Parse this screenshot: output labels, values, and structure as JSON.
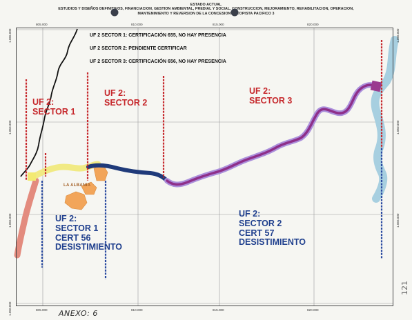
{
  "header": {
    "line1": "ESTADO ACTUAL",
    "line2": "ESTUDIOS Y DISEÑOS DEFINITIVOS, FINANCIACION, GESTION AMBIENTAL, PREDIAL Y SOCIAL, CONSTRUCCION, MEJORAMIENTO, REHABILITACION, OPERACION,",
    "line3": "MANTENIMIENTO Y REVERSION DE LA CONCESION AUTOPISTA PACIFICO 3"
  },
  "grid": {
    "easting_labels": [
      "805.000",
      "810.000",
      "815.000",
      "820.000"
    ],
    "northing_labels": [
      "1.065.000",
      "1.060.000",
      "1.055.000",
      "1.050.000"
    ]
  },
  "status_lines": [
    "UF 2 SECTOR 1: CERTIFICACIÓN 655, NO HAY PRESENCIA",
    "UF 2 SECTOR 2: PENDIENTE CERTIFICAR",
    "UF 2 SECTOR 3: CERTIFICACIÓN 656, NO HAY PRESENCIA"
  ],
  "sectors_top": {
    "s1": {
      "line1": "UF 2:",
      "line2": "SECTOR 1"
    },
    "s2": {
      "line1": "UF 2:",
      "line2": "SECTOR 2"
    },
    "s3": {
      "line1": "UF 2:",
      "line2": "SECTOR 3"
    }
  },
  "sectors_bottom": {
    "s1": {
      "line1": "UF 2:",
      "line2": "SECTOR 1",
      "line3": "CERT 56",
      "line4": "DESISTIMIENTO"
    },
    "s2": {
      "line1": "UF 2:",
      "line2": "SECTOR 2",
      "line3": "CERT 57",
      "line4": "DESISTIMIENTO"
    }
  },
  "place_label": "LA ALBANIA",
  "annex": "ANEXO: 6",
  "page_number": "121",
  "colors": {
    "red_marker": "#c6282c",
    "blue_marker": "#2a4aa0",
    "purple_route": "#8e2f8a",
    "lilac_route": "#a88ad8",
    "navy_route": "#1f3a7a",
    "yellow_route": "#f1ea7a",
    "orange_area": "#f0a050",
    "cyan_route": "#9cc7dc",
    "salmon_route": "#e07a6e"
  }
}
